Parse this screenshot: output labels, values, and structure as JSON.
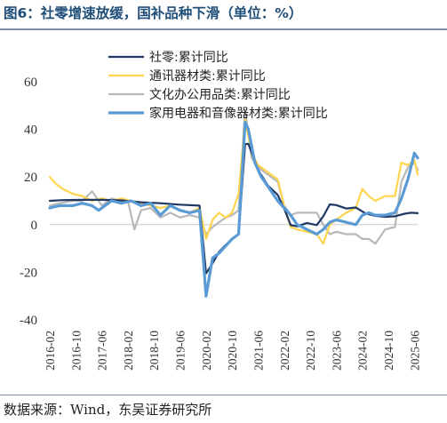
{
  "title": "图6：社零增速放缓，国补品种下滑（单位：%）",
  "source": "数据来源：Wind，东吴证券研究所",
  "chart_data": {
    "type": "line",
    "ylim": [
      -40,
      60
    ],
    "yticks": [
      60,
      40,
      20,
      0,
      -20,
      -40
    ],
    "x_tick_labels": [
      "2016-02",
      "2016-10",
      "2017-06",
      "2018-02",
      "2018-10",
      "2019-06",
      "2020-02",
      "2020-10",
      "2021-06",
      "2022-02",
      "2022-10",
      "2023-06",
      "2024-02",
      "2024-10",
      "2025-06"
    ],
    "x_start": "2016-02",
    "x_end": "2025-07",
    "legend_position": "top-center",
    "series": [
      {
        "name": "社零:累计同比",
        "color": "#1f3864",
        "width": 2.2,
        "points": [
          [
            "2016-02",
            10
          ],
          [
            "2016-06",
            10.3
          ],
          [
            "2016-12",
            10.4
          ],
          [
            "2017-06",
            10.4
          ],
          [
            "2017-12",
            10.2
          ],
          [
            "2018-06",
            9.4
          ],
          [
            "2018-12",
            9.0
          ],
          [
            "2019-06",
            8.4
          ],
          [
            "2019-12",
            8.0
          ],
          [
            "2020-02",
            -20.5
          ],
          [
            "2020-04",
            -16.2
          ],
          [
            "2020-06",
            -11.4
          ],
          [
            "2020-08",
            -8.6
          ],
          [
            "2020-10",
            -5.9
          ],
          [
            "2020-12",
            -3.9
          ],
          [
            "2021-02",
            33.8
          ],
          [
            "2021-03",
            33.9
          ],
          [
            "2021-06",
            23.0
          ],
          [
            "2021-09",
            16.4
          ],
          [
            "2021-12",
            12.5
          ],
          [
            "2022-02",
            6.7
          ],
          [
            "2022-04",
            -0.2
          ],
          [
            "2022-06",
            -0.7
          ],
          [
            "2022-09",
            0.7
          ],
          [
            "2022-12",
            -0.2
          ],
          [
            "2023-02",
            3.5
          ],
          [
            "2023-04",
            8.5
          ],
          [
            "2023-06",
            8.2
          ],
          [
            "2023-09",
            6.8
          ],
          [
            "2023-12",
            7.2
          ],
          [
            "2024-03",
            4.7
          ],
          [
            "2024-06",
            3.7
          ],
          [
            "2024-09",
            3.3
          ],
          [
            "2024-12",
            3.5
          ],
          [
            "2025-03",
            4.6
          ],
          [
            "2025-05",
            5.0
          ],
          [
            "2025-07",
            4.8
          ]
        ]
      },
      {
        "name": "通讯器材类:累计同比",
        "color": "#ffd54f",
        "width": 2.2,
        "points": [
          [
            "2016-02",
            20
          ],
          [
            "2016-04",
            17
          ],
          [
            "2016-06",
            15
          ],
          [
            "2016-09",
            13
          ],
          [
            "2016-12",
            12
          ],
          [
            "2017-03",
            10
          ],
          [
            "2017-06",
            11
          ],
          [
            "2017-09",
            10
          ],
          [
            "2017-12",
            11
          ],
          [
            "2018-03",
            10
          ],
          [
            "2018-06",
            9
          ],
          [
            "2018-09",
            8
          ],
          [
            "2018-12",
            7
          ],
          [
            "2019-03",
            8
          ],
          [
            "2019-06",
            6
          ],
          [
            "2019-09",
            5
          ],
          [
            "2019-12",
            7
          ],
          [
            "2020-02",
            -6
          ],
          [
            "2020-04",
            2
          ],
          [
            "2020-06",
            5
          ],
          [
            "2020-08",
            3
          ],
          [
            "2020-10",
            5
          ],
          [
            "2020-12",
            13
          ],
          [
            "2021-02",
            44
          ],
          [
            "2021-04",
            30
          ],
          [
            "2021-06",
            25
          ],
          [
            "2021-09",
            22
          ],
          [
            "2021-12",
            19
          ],
          [
            "2022-02",
            8
          ],
          [
            "2022-04",
            -1
          ],
          [
            "2022-06",
            -2
          ],
          [
            "2022-09",
            -3
          ],
          [
            "2022-12",
            -4
          ],
          [
            "2023-02",
            -8
          ],
          [
            "2023-04",
            0
          ],
          [
            "2023-06",
            2
          ],
          [
            "2023-09",
            5
          ],
          [
            "2023-12",
            7
          ],
          [
            "2024-02",
            15
          ],
          [
            "2024-04",
            12
          ],
          [
            "2024-06",
            10
          ],
          [
            "2024-09",
            12
          ],
          [
            "2024-12",
            12
          ],
          [
            "2025-02",
            26
          ],
          [
            "2025-04",
            25
          ],
          [
            "2025-06",
            27
          ],
          [
            "2025-07",
            21
          ]
        ]
      },
      {
        "name": "文化办公用品类:累计同比",
        "color": "#b8b8b8",
        "width": 2.2,
        "points": [
          [
            "2016-02",
            8
          ],
          [
            "2016-05",
            9
          ],
          [
            "2016-09",
            10
          ],
          [
            "2016-12",
            10
          ],
          [
            "2017-03",
            14
          ],
          [
            "2017-06",
            8
          ],
          [
            "2017-09",
            11
          ],
          [
            "2017-12",
            10
          ],
          [
            "2018-02",
            10
          ],
          [
            "2018-04",
            -2
          ],
          [
            "2018-06",
            6
          ],
          [
            "2018-09",
            7
          ],
          [
            "2018-12",
            3
          ],
          [
            "2019-03",
            5
          ],
          [
            "2019-06",
            3
          ],
          [
            "2019-09",
            4
          ],
          [
            "2019-12",
            3
          ],
          [
            "2020-02",
            -4
          ],
          [
            "2020-04",
            -1
          ],
          [
            "2020-06",
            1
          ],
          [
            "2020-08",
            3
          ],
          [
            "2020-10",
            4
          ],
          [
            "2020-12",
            6
          ],
          [
            "2021-02",
            48
          ],
          [
            "2021-04",
            28
          ],
          [
            "2021-06",
            24
          ],
          [
            "2021-09",
            21
          ],
          [
            "2021-12",
            18
          ],
          [
            "2022-02",
            8
          ],
          [
            "2022-04",
            4
          ],
          [
            "2022-06",
            5
          ],
          [
            "2022-09",
            5
          ],
          [
            "2022-12",
            5
          ],
          [
            "2023-02",
            0
          ],
          [
            "2023-04",
            -4
          ],
          [
            "2023-06",
            -3
          ],
          [
            "2023-09",
            -4
          ],
          [
            "2023-12",
            -4
          ],
          [
            "2024-02",
            -6
          ],
          [
            "2024-04",
            -6
          ],
          [
            "2024-06",
            -8
          ],
          [
            "2024-09",
            -2
          ],
          [
            "2024-12",
            -1
          ],
          [
            "2025-02",
            18
          ],
          [
            "2025-04",
            24
          ],
          [
            "2025-06",
            26
          ],
          [
            "2025-07",
            23
          ]
        ]
      },
      {
        "name": "家用电器和音像器材类:累计同比",
        "color": "#5b9bd5",
        "width": 3.2,
        "points": [
          [
            "2016-02",
            7
          ],
          [
            "2016-05",
            8
          ],
          [
            "2016-09",
            8
          ],
          [
            "2016-12",
            9
          ],
          [
            "2017-03",
            8
          ],
          [
            "2017-05",
            6
          ],
          [
            "2017-09",
            10
          ],
          [
            "2017-12",
            9
          ],
          [
            "2018-03",
            10
          ],
          [
            "2018-06",
            8
          ],
          [
            "2018-09",
            9
          ],
          [
            "2018-12",
            4
          ],
          [
            "2019-03",
            8
          ],
          [
            "2019-06",
            6
          ],
          [
            "2019-09",
            5
          ],
          [
            "2019-12",
            6
          ],
          [
            "2020-02",
            -30
          ],
          [
            "2020-04",
            -14
          ],
          [
            "2020-06",
            -12
          ],
          [
            "2020-08",
            -9
          ],
          [
            "2020-10",
            -6
          ],
          [
            "2020-12",
            -4
          ],
          [
            "2021-02",
            43
          ],
          [
            "2021-03",
            40
          ],
          [
            "2021-05",
            26
          ],
          [
            "2021-07",
            20
          ],
          [
            "2021-09",
            16
          ],
          [
            "2021-12",
            10
          ],
          [
            "2022-02",
            7
          ],
          [
            "2022-04",
            4
          ],
          [
            "2022-06",
            0
          ],
          [
            "2022-09",
            -2
          ],
          [
            "2022-12",
            -4
          ],
          [
            "2023-02",
            -2
          ],
          [
            "2023-04",
            1
          ],
          [
            "2023-06",
            2
          ],
          [
            "2023-09",
            1
          ],
          [
            "2023-12",
            0
          ],
          [
            "2024-02",
            4
          ],
          [
            "2024-04",
            5
          ],
          [
            "2024-06",
            4
          ],
          [
            "2024-09",
            4
          ],
          [
            "2024-12",
            5
          ],
          [
            "2025-02",
            11
          ],
          [
            "2025-04",
            19
          ],
          [
            "2025-06",
            30
          ],
          [
            "2025-07",
            28
          ]
        ]
      }
    ]
  }
}
